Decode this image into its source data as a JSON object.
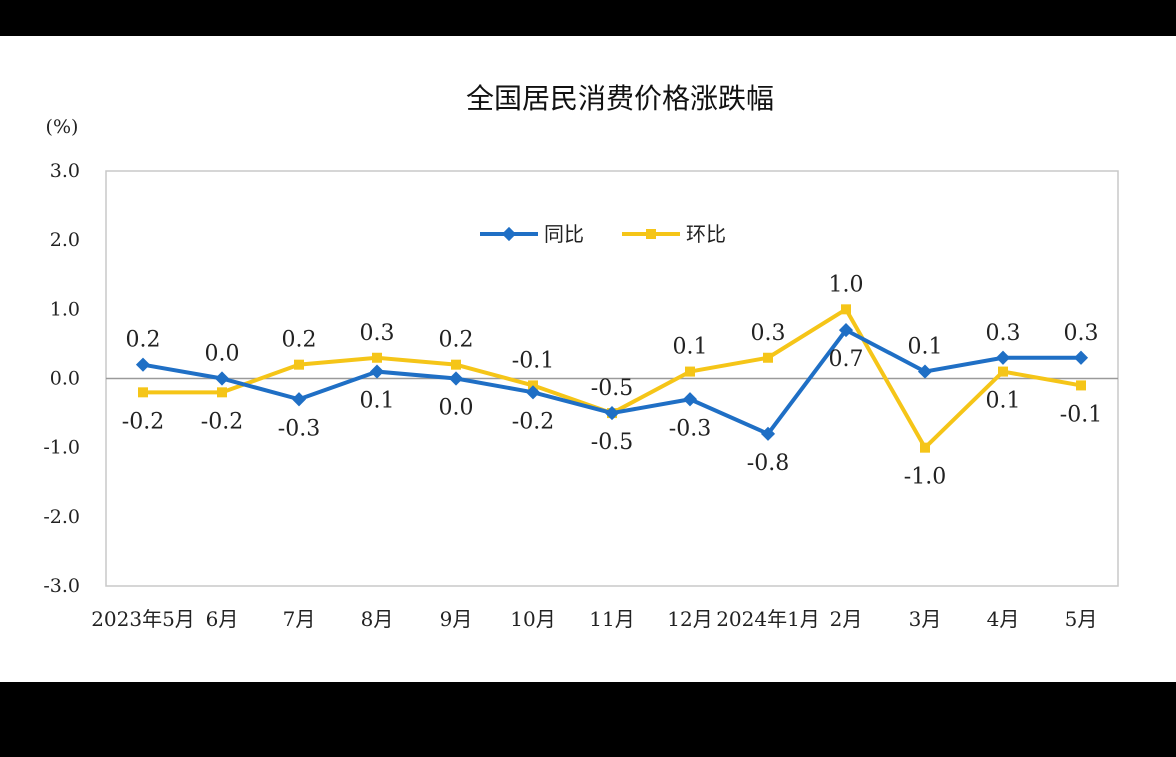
{
  "chart_data": {
    "type": "line",
    "title": "全国居民消费价格涨跌幅",
    "unit_label": "(%)",
    "ylim": [
      -3.0,
      3.0
    ],
    "yticks": [
      "3.0",
      "2.0",
      "1.0",
      "0.0",
      "-1.0",
      "-2.0",
      "-3.0"
    ],
    "categories": [
      "2023年5月",
      "6月",
      "7月",
      "8月",
      "9月",
      "10月",
      "11月",
      "12月",
      "2024年1月",
      "2月",
      "3月",
      "4月",
      "5月"
    ],
    "legend_position": "top-center",
    "grid": false,
    "series": [
      {
        "name": "同比",
        "color": "#1f6fc5",
        "marker": "diamond",
        "values": [
          0.2,
          0.0,
          -0.3,
          0.1,
          0.0,
          -0.2,
          -0.5,
          -0.3,
          -0.8,
          0.7,
          0.1,
          0.3,
          0.3
        ],
        "labels": [
          "0.2",
          "0.0",
          "-0.3",
          "0.1",
          "0.0",
          "-0.2",
          "-0.5",
          "-0.3",
          "-0.8",
          "0.7",
          "0.1",
          "0.3",
          "0.3"
        ]
      },
      {
        "name": "环比",
        "color": "#f5c518",
        "marker": "square",
        "values": [
          -0.2,
          -0.2,
          0.2,
          0.3,
          0.2,
          -0.1,
          -0.5,
          0.1,
          0.3,
          1.0,
          -1.0,
          0.1,
          -0.1
        ],
        "labels": [
          "-0.2",
          "-0.2",
          "0.2",
          "0.3",
          "0.2",
          "-0.1",
          "-0.5",
          "0.1",
          "0.3",
          "1.0",
          "-1.0",
          "0.1",
          "-0.1"
        ]
      }
    ]
  }
}
